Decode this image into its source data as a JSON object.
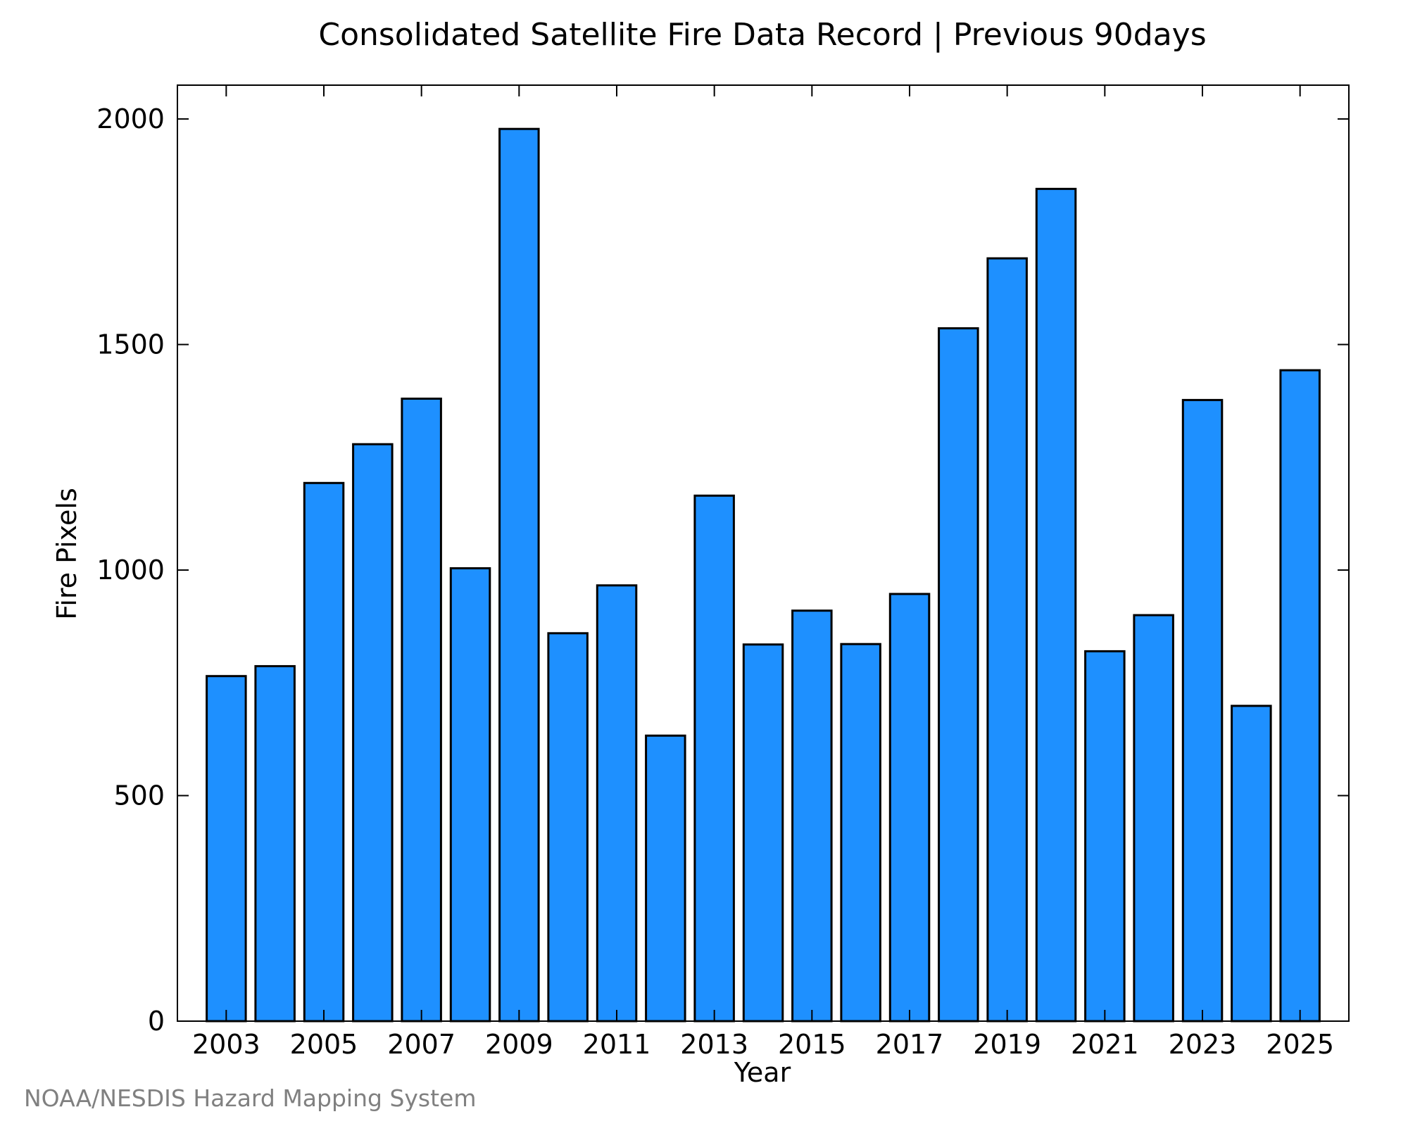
{
  "credit": "NOAA/NESDIS Hazard Mapping System",
  "chart_data": {
    "type": "bar",
    "title": "Consolidated Satellite Fire Data Record | Previous 90days",
    "xlabel": "Year",
    "ylabel": "Fire Pixels",
    "categories": [
      "2003",
      "2004",
      "2005",
      "2006",
      "2007",
      "2008",
      "2009",
      "2010",
      "2011",
      "2012",
      "2013",
      "2014",
      "2015",
      "2016",
      "2017",
      "2018",
      "2019",
      "2020",
      "2021",
      "2022",
      "2023",
      "2024",
      "2025"
    ],
    "values": [
      765,
      787,
      1193,
      1279,
      1380,
      1004,
      1978,
      860,
      966,
      633,
      1165,
      835,
      910,
      836,
      947,
      1536,
      1691,
      1845,
      820,
      900,
      1377,
      699,
      1443
    ],
    "x_tick_labels": [
      "2003",
      "2005",
      "2007",
      "2009",
      "2011",
      "2013",
      "2015",
      "2017",
      "2019",
      "2021",
      "2023",
      "2025"
    ],
    "y_ticks": [
      0,
      500,
      1000,
      1500,
      2000
    ],
    "ylim": [
      0,
      2075
    ],
    "grid": false,
    "legend": "none",
    "colors": {
      "bar_fill": "#1E90FF",
      "bar_stroke": "#000000",
      "axis": "#000000"
    }
  }
}
